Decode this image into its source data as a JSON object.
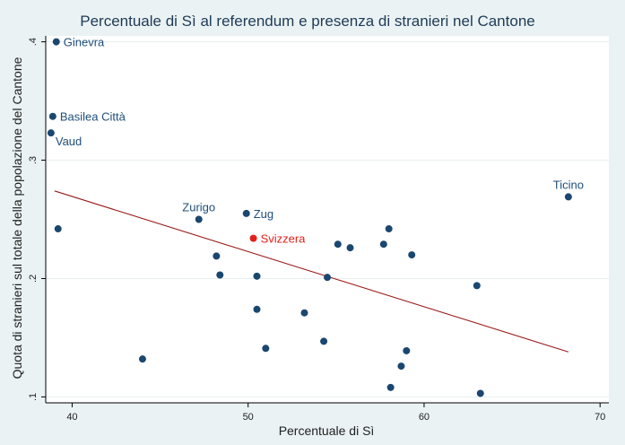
{
  "chart_data": {
    "type": "scatter",
    "title": "Percentuale di Sì al referendum e presenza di stranieri nel Cantone",
    "xlabel": "Percentuale di Sì",
    "ylabel": "Quota di stranieri sul totale della popolazione del Cantone",
    "xlim": [
      38.5,
      70.5
    ],
    "ylim": [
      0.095,
      0.405
    ],
    "x_ticks": [
      40,
      50,
      60,
      70
    ],
    "x_tick_labels": [
      "40",
      "50",
      "60",
      "70"
    ],
    "y_ticks": [
      0.1,
      0.2,
      0.3,
      0.4
    ],
    "y_tick_labels": [
      ".1",
      ".2",
      ".3",
      ".4"
    ],
    "grid": "horizontal",
    "colors": {
      "point": "#1a476f",
      "highlight": "#e0221b",
      "fit_line": "#9b1c1c",
      "plot_background": "#ffffff",
      "grid": "#e6eef0"
    },
    "points": [
      {
        "x": 39.1,
        "y": 0.4,
        "label": "Ginevra",
        "label_pos": "right"
      },
      {
        "x": 38.9,
        "y": 0.337,
        "label": "Basilea Città",
        "label_pos": "right"
      },
      {
        "x": 38.8,
        "y": 0.323,
        "label": "Vaud",
        "label_pos": "below-right"
      },
      {
        "x": 68.2,
        "y": 0.269,
        "label": "Ticino",
        "label_pos": "above"
      },
      {
        "x": 47.2,
        "y": 0.25,
        "label": "Zurigo",
        "label_pos": "above"
      },
      {
        "x": 49.9,
        "y": 0.255,
        "label": "Zug",
        "label_pos": "right"
      },
      {
        "x": 50.3,
        "y": 0.234,
        "label": "Svizzera",
        "label_pos": "right",
        "highlight": true
      },
      {
        "x": 39.2,
        "y": 0.242,
        "label": ""
      },
      {
        "x": 44.0,
        "y": 0.132,
        "label": ""
      },
      {
        "x": 48.2,
        "y": 0.219,
        "label": ""
      },
      {
        "x": 48.4,
        "y": 0.203,
        "label": ""
      },
      {
        "x": 50.5,
        "y": 0.202,
        "label": ""
      },
      {
        "x": 50.5,
        "y": 0.174,
        "label": ""
      },
      {
        "x": 51.0,
        "y": 0.141,
        "label": ""
      },
      {
        "x": 53.2,
        "y": 0.171,
        "label": ""
      },
      {
        "x": 54.3,
        "y": 0.147,
        "label": ""
      },
      {
        "x": 54.5,
        "y": 0.201,
        "label": ""
      },
      {
        "x": 55.1,
        "y": 0.229,
        "label": ""
      },
      {
        "x": 55.8,
        "y": 0.226,
        "label": ""
      },
      {
        "x": 57.7,
        "y": 0.229,
        "label": ""
      },
      {
        "x": 58.0,
        "y": 0.242,
        "label": ""
      },
      {
        "x": 58.1,
        "y": 0.108,
        "label": ""
      },
      {
        "x": 58.7,
        "y": 0.126,
        "label": ""
      },
      {
        "x": 59.0,
        "y": 0.139,
        "label": ""
      },
      {
        "x": 59.3,
        "y": 0.22,
        "label": ""
      },
      {
        "x": 63.0,
        "y": 0.194,
        "label": ""
      },
      {
        "x": 63.2,
        "y": 0.103,
        "label": ""
      }
    ],
    "fit_line": {
      "x": [
        39.0,
        68.2
      ],
      "y": [
        0.274,
        0.138
      ]
    }
  }
}
